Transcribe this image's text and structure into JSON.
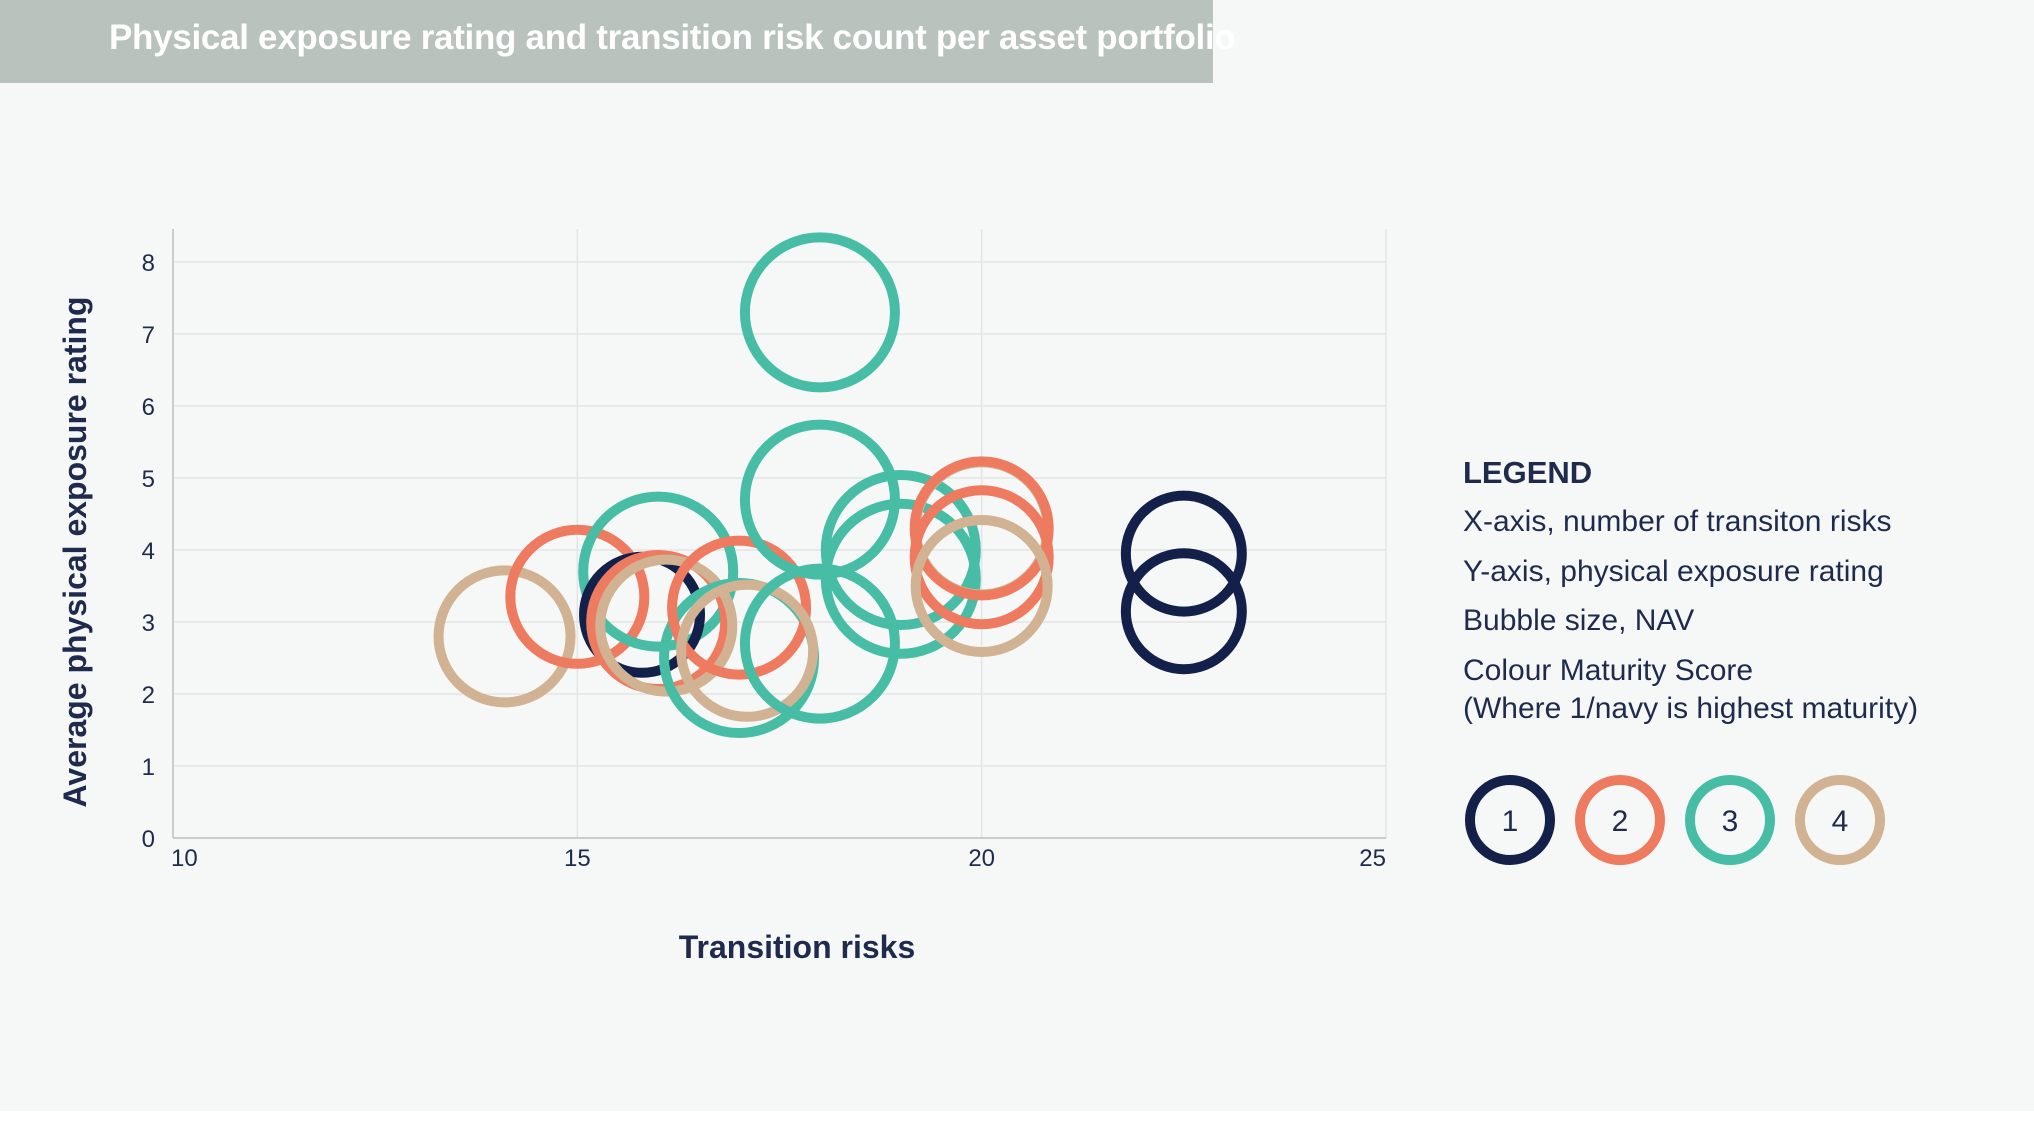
{
  "title": "Physical exposure rating and transition risk count per asset portfolio",
  "colors": {
    "1": "#13204a",
    "2": "#ee7a5f",
    "3": "#47bda6",
    "4": "#d1b292",
    "axis_text": "#1f2a4d",
    "grid": "#e3e6e5"
  },
  "legend": {
    "title": "LEGEND",
    "lines": [
      "X-axis, number of transiton risks",
      "Y-axis, physical exposure rating",
      "Bubble size, NAV",
      "Colour Maturity Score",
      "(Where 1/navy is highest maturity)"
    ],
    "swatches": [
      {
        "label": "1",
        "score": 1
      },
      {
        "label": "2",
        "score": 2
      },
      {
        "label": "3",
        "score": 3
      },
      {
        "label": "4",
        "score": 4
      }
    ]
  },
  "chart_data": {
    "type": "scatter",
    "title": "Physical exposure rating and transition risk count per asset portfolio",
    "xlabel": "Transition risks",
    "ylabel": "Average physical exposure rating",
    "xlim": [
      10,
      25
    ],
    "ylim": [
      0,
      8.5
    ],
    "x_ticks": [
      "10",
      "15",
      "20",
      "25"
    ],
    "y_ticks": [
      "0",
      "1",
      "2",
      "3",
      "4",
      "5",
      "6",
      "7",
      "8"
    ],
    "grid": true,
    "legend_position": "right",
    "points": [
      {
        "x": 14.1,
        "y": 2.8,
        "score": 4
      },
      {
        "x": 15.0,
        "y": 3.35,
        "score": 2
      },
      {
        "x": 16.0,
        "y": 3.7,
        "score": 3
      },
      {
        "x": 15.8,
        "y": 3.1,
        "score": 1
      },
      {
        "x": 16.0,
        "y": 3.0,
        "score": 2
      },
      {
        "x": 16.1,
        "y": 2.95,
        "score": 4
      },
      {
        "x": 17.0,
        "y": 2.5,
        "score": 3
      },
      {
        "x": 17.0,
        "y": 3.2,
        "score": 2
      },
      {
        "x": 17.1,
        "y": 2.6,
        "score": 4
      },
      {
        "x": 18.0,
        "y": 2.7,
        "score": 3
      },
      {
        "x": 18.0,
        "y": 4.7,
        "score": 3
      },
      {
        "x": 18.0,
        "y": 7.3,
        "score": 3
      },
      {
        "x": 19.0,
        "y": 4.0,
        "score": 3
      },
      {
        "x": 19.0,
        "y": 3.6,
        "score": 3
      },
      {
        "x": 20.0,
        "y": 4.3,
        "score": 4
      },
      {
        "x": 20.0,
        "y": 4.3,
        "score": 2
      },
      {
        "x": 20.0,
        "y": 3.9,
        "score": 2
      },
      {
        "x": 20.0,
        "y": 3.5,
        "score": 4
      },
      {
        "x": 22.5,
        "y": 3.95,
        "score": 1
      },
      {
        "x": 22.5,
        "y": 3.15,
        "score": 1
      }
    ]
  }
}
